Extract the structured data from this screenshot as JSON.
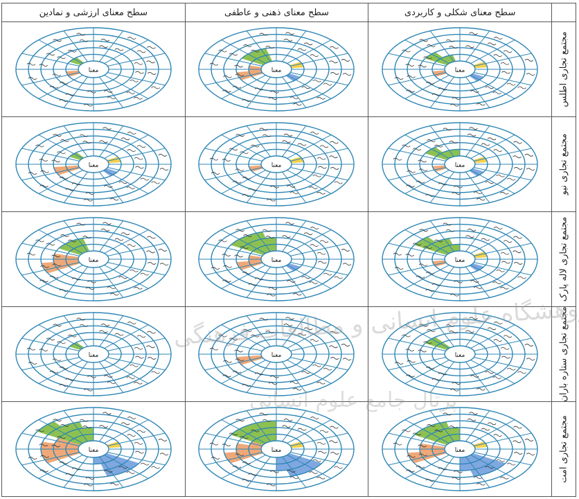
{
  "columns": [
    "سطح معنای شکلی و کاربردی",
    "سطح معنای ذهنی و عاطفی",
    "سطح معنای ارزشی و نمادین"
  ],
  "rows": [
    "مجتمع تجاری اطلس",
    "مجتمع تجاری نیو",
    "مجتمع تجاری لاله پارک",
    "مجتمع تجاری ستاره باران",
    "مجتمع تجاری امت"
  ],
  "center_label": "معنا",
  "watermark": {
    "line1": "پژوهشگاه علوم انسانی و مطالعات فرهنگی",
    "line2": "پرتال جامع علوم انسانی"
  },
  "colors": {
    "ring": "#2e86b5",
    "green": "#8cc152",
    "yellow": "#f6d04d",
    "orange": "#f0a878",
    "blue": "#7fa8e0"
  },
  "charts": [
    [
      {
        "g": [
          2,
          1
        ],
        "y": [
          1
        ],
        "o": [
          1
        ],
        "b": [
          1
        ]
      },
      {
        "g": [
          2,
          2
        ],
        "y": [
          1
        ],
        "o": [
          2,
          1
        ],
        "b": [
          1
        ]
      },
      {
        "g": [
          1
        ],
        "y": [],
        "o": [
          1
        ],
        "b": []
      }
    ],
    [
      {
        "g": [
          3,
          1
        ],
        "y": [
          1
        ],
        "o": [
          1
        ],
        "b": [
          1
        ]
      },
      {
        "g": [],
        "y": [
          1
        ],
        "o": [
          1
        ],
        "b": []
      },
      {
        "g": [
          1
        ],
        "y": [
          1
        ],
        "o": [
          1,
          1
        ],
        "b": [
          1
        ]
      }
    ],
    [
      {
        "g": [
          3,
          2,
          1
        ],
        "y": [
          1
        ],
        "o": [
          1
        ],
        "b": [
          1
        ]
      },
      {
        "g": [
          3,
          3,
          2
        ],
        "y": [],
        "o": [
          2,
          1
        ],
        "b": [
          1
        ]
      },
      {
        "g": [
          2,
          2
        ],
        "y": [],
        "o": [
          2,
          2,
          1
        ],
        "b": []
      }
    ],
    [
      {
        "g": [
          1,
          1
        ],
        "y": [],
        "o": [],
        "b": []
      },
      {
        "g": [],
        "y": [],
        "o": [
          1,
          1
        ],
        "b": []
      },
      {
        "g": [
          1
        ],
        "y": [],
        "o": [],
        "b": []
      }
    ],
    [
      {
        "g": [
          3,
          3,
          2
        ],
        "y": [
          1
        ],
        "o": [
          2,
          2,
          1
        ],
        "b": [
          3,
          3,
          2
        ]
      },
      {
        "g": [
          3,
          3,
          3
        ],
        "y": [
          1
        ],
        "o": [
          3,
          2,
          1
        ],
        "b": [
          3,
          3,
          2
        ]
      },
      {
        "g": [
          3,
          3,
          2,
          1
        ],
        "y": [
          1
        ],
        "o": [
          3,
          3,
          2
        ],
        "b": [
          3,
          2,
          2
        ]
      }
    ]
  ]
}
